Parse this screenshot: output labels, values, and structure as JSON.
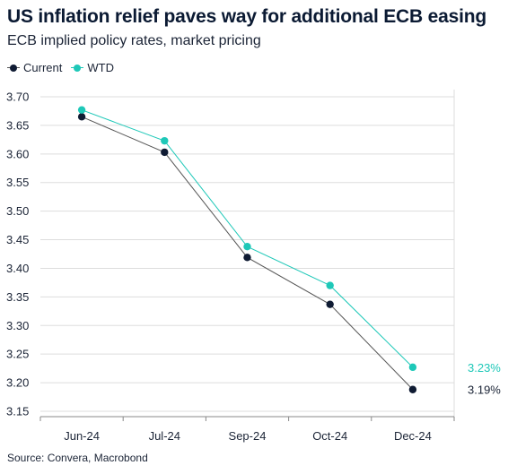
{
  "title": "US inflation relief paves way for additional ECB easing",
  "subtitle": "ECB implied policy rates, market pricing",
  "source": "Source: Convera, Macrobond",
  "colors": {
    "current": "#0f1b33",
    "current_line": "#555555",
    "wtd": "#1ec8b8",
    "grid": "#dddddd",
    "axis": "#333333"
  },
  "chart_data": {
    "type": "line",
    "categories": [
      "Jun-24",
      "Jul-24",
      "Sep-24",
      "Oct-24",
      "Dec-24"
    ],
    "ylim": [
      3.15,
      3.7
    ],
    "yticks": [
      "3.70",
      "3.65",
      "3.60",
      "3.55",
      "3.50",
      "3.45",
      "3.40",
      "3.35",
      "3.30",
      "3.25",
      "3.20",
      "3.15"
    ],
    "grid": true,
    "legend_position": "top-left",
    "series": [
      {
        "name": "Current",
        "color_key": "current",
        "values": [
          3.665,
          3.603,
          3.419,
          3.337,
          3.188
        ],
        "end_label": "3.19%"
      },
      {
        "name": "WTD",
        "color_key": "wtd",
        "values": [
          3.677,
          3.623,
          3.438,
          3.37,
          3.227
        ],
        "end_label": "3.23%"
      }
    ]
  }
}
